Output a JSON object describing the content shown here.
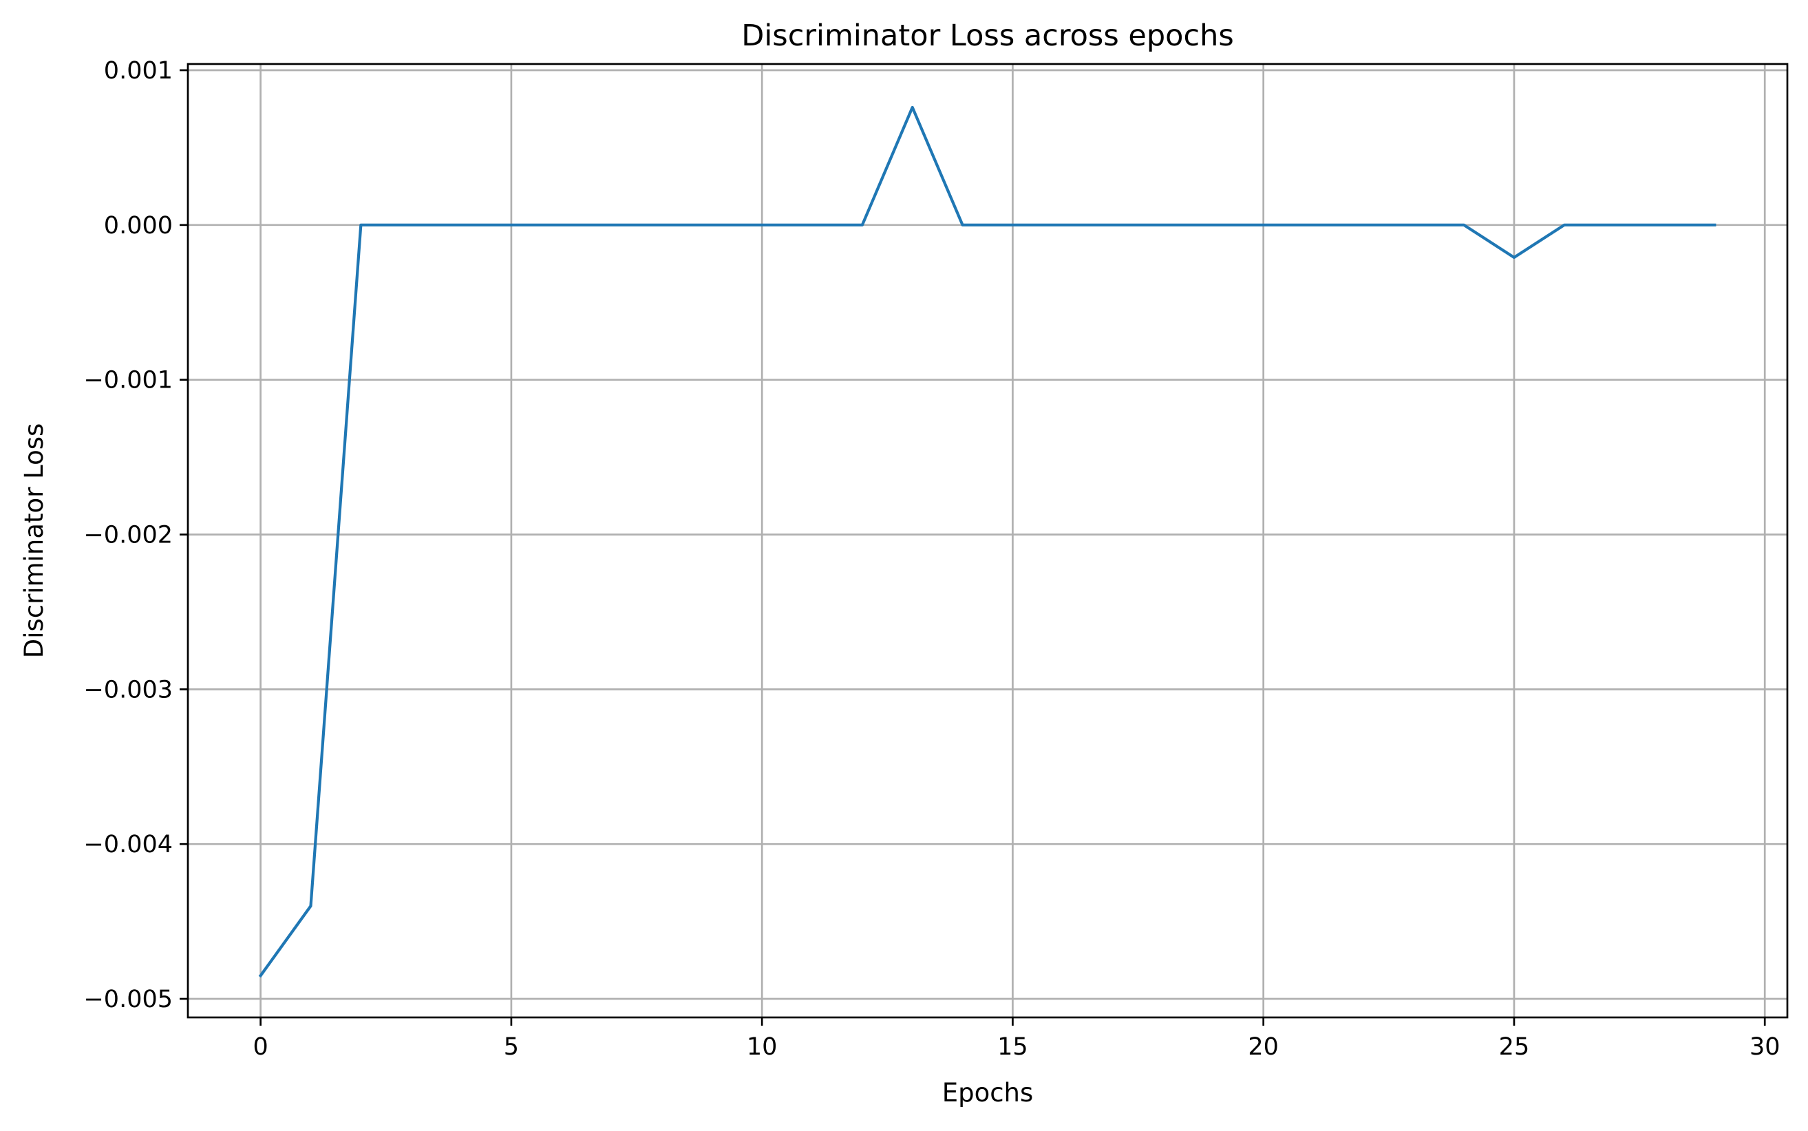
{
  "chart_data": {
    "type": "line",
    "title": "Discriminator Loss across epochs",
    "xlabel": "Epochs",
    "ylabel": "Discriminator Loss",
    "xlim": [
      -1.45,
      30.45
    ],
    "ylim": [
      -0.00512,
      0.00104
    ],
    "grid": true,
    "legend": "none",
    "x_ticks": [
      0,
      5,
      10,
      15,
      20,
      25,
      30
    ],
    "x_tick_labels": [
      "0",
      "5",
      "10",
      "15",
      "20",
      "25",
      "30"
    ],
    "y_ticks": [
      0.001,
      0.0,
      -0.001,
      -0.002,
      -0.003,
      -0.004,
      -0.005
    ],
    "y_tick_labels": [
      "0.001",
      "0.000",
      "−0.001",
      "−0.002",
      "−0.003",
      "−0.004",
      "−0.005"
    ],
    "series": [
      {
        "color": "#1f77b4",
        "x": [
          0,
          1,
          2,
          3,
          4,
          5,
          6,
          7,
          8,
          9,
          10,
          11,
          12,
          13,
          14,
          15,
          16,
          17,
          18,
          19,
          20,
          21,
          22,
          23,
          24,
          25,
          26,
          27,
          28,
          29
        ],
        "values": [
          -0.00485,
          -0.0044,
          0.0,
          0.0,
          0.0,
          0.0,
          0.0,
          0.0,
          0.0,
          0.0,
          0.0,
          0.0,
          0.0,
          0.00076,
          0.0,
          0.0,
          0.0,
          0.0,
          0.0,
          0.0,
          0.0,
          0.0,
          0.0,
          0.0,
          0.0,
          -0.00021,
          0.0,
          0.0,
          0.0,
          0.0
        ]
      }
    ]
  }
}
